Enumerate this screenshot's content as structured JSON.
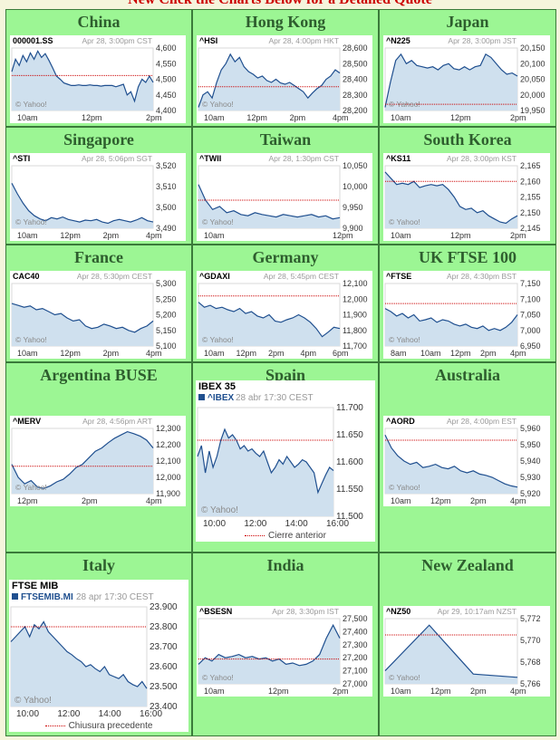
{
  "page": {
    "banner": "New Click the Charts Below for a Detailed Quote"
  },
  "charts": [
    {
      "region": "China",
      "symbol": "000001.SS",
      "stamp": "Apr 28, 3:00pm CST",
      "yticks": [
        "4,600",
        "4,550",
        "4,500",
        "4,450",
        "4,400"
      ],
      "xticks": [
        "10am",
        "12pm",
        "2pm"
      ],
      "watermark": "© Yahoo!",
      "prev": 0.44,
      "series": [
        0.38,
        0.18,
        0.28,
        0.12,
        0.22,
        0.08,
        0.18,
        0.05,
        0.15,
        0.09,
        0.2,
        0.32,
        0.45,
        0.5,
        0.56,
        0.58,
        0.6,
        0.6,
        0.59,
        0.6,
        0.6,
        0.59,
        0.6,
        0.6,
        0.61,
        0.6,
        0.6,
        0.6,
        0.62,
        0.6,
        0.58,
        0.75,
        0.7,
        0.85,
        0.62,
        0.5,
        0.55,
        0.45,
        0.55
      ]
    },
    {
      "region": "Hong Kong",
      "symbol": "^HSI",
      "stamp": "Apr 28, 4:00pm HKT",
      "yticks": [
        "28,600",
        "28,500",
        "28,400",
        "28,300",
        "28,200"
      ],
      "xticks": [
        "10am",
        "12pm",
        "2pm",
        "4pm"
      ],
      "watermark": "© Yahoo!",
      "prev": 0.62,
      "series": [
        0.95,
        0.75,
        0.7,
        0.8,
        0.55,
        0.35,
        0.25,
        0.1,
        0.22,
        0.15,
        0.3,
        0.38,
        0.42,
        0.48,
        0.45,
        0.52,
        0.55,
        0.5,
        0.56,
        0.58,
        0.55,
        0.6,
        0.65,
        0.7,
        0.8,
        0.72,
        0.65,
        0.6,
        0.5,
        0.45,
        0.35,
        0.4
      ]
    },
    {
      "region": "Japan",
      "symbol": "^N225",
      "stamp": "Apr 28, 3:00pm JST",
      "yticks": [
        "20,150",
        "20,100",
        "20,050",
        "20,000",
        "19,950"
      ],
      "xticks": [
        "10am",
        "12pm",
        "2pm"
      ],
      "watermark": "© Yahoo!",
      "prev": 0.9,
      "series": [
        0.95,
        0.55,
        0.2,
        0.1,
        0.25,
        0.2,
        0.28,
        0.3,
        0.32,
        0.3,
        0.35,
        0.28,
        0.25,
        0.33,
        0.35,
        0.3,
        0.35,
        0.3,
        0.28,
        0.1,
        0.15,
        0.25,
        0.35,
        0.42,
        0.4,
        0.45
      ]
    },
    {
      "region": "Singapore",
      "symbol": "^STI",
      "stamp": "Apr 28, 5:06pm SGT",
      "yticks": [
        "3,520",
        "3,510",
        "3,500",
        "3,490"
      ],
      "xticks": [
        "10am",
        "12pm",
        "2pm",
        "4pm"
      ],
      "watermark": "© Yahoo!",
      "prev": null,
      "series": [
        0.28,
        0.45,
        0.6,
        0.72,
        0.8,
        0.85,
        0.88,
        0.83,
        0.85,
        0.82,
        0.86,
        0.88,
        0.9,
        0.87,
        0.88,
        0.86,
        0.9,
        0.92,
        0.88,
        0.86,
        0.88,
        0.9,
        0.87,
        0.83,
        0.88,
        0.9
      ]
    },
    {
      "region": "Taiwan",
      "symbol": "^TWII",
      "stamp": "Apr 28, 1:30pm CST",
      "yticks": [
        "10,050",
        "10,000",
        "9,950",
        "9,900"
      ],
      "xticks": [
        "10am",
        "12pm"
      ],
      "watermark": "© Yahoo!",
      "prev": 0.55,
      "series": [
        0.3,
        0.55,
        0.7,
        0.65,
        0.75,
        0.72,
        0.78,
        0.8,
        0.75,
        0.78,
        0.8,
        0.82,
        0.78,
        0.8,
        0.82,
        0.8,
        0.78,
        0.82,
        0.8,
        0.85,
        0.83
      ]
    },
    {
      "region": "South Korea",
      "symbol": "^KS11",
      "stamp": "Apr 28, 3:00pm KST",
      "yticks": [
        "2,165",
        "2,160",
        "2,155",
        "2,150",
        "2,145"
      ],
      "xticks": [
        "10am",
        "12pm",
        "2pm"
      ],
      "watermark": "© Yahoo!",
      "prev": 0.25,
      "series": [
        0.1,
        0.2,
        0.3,
        0.28,
        0.3,
        0.25,
        0.35,
        0.32,
        0.3,
        0.32,
        0.3,
        0.38,
        0.5,
        0.65,
        0.7,
        0.68,
        0.75,
        0.72,
        0.8,
        0.85,
        0.9,
        0.92,
        0.85,
        0.8
      ]
    },
    {
      "region": "France",
      "symbol": "CAC40",
      "stamp": "Apr 28, 5:30pm CEST",
      "yticks": [
        "5,300",
        "5,250",
        "5,200",
        "5,150",
        "5,100"
      ],
      "xticks": [
        "10am",
        "12pm",
        "2pm",
        "4pm"
      ],
      "watermark": "© Yahoo!",
      "prev": null,
      "series": [
        0.32,
        0.35,
        0.38,
        0.36,
        0.42,
        0.4,
        0.45,
        0.5,
        0.48,
        0.55,
        0.6,
        0.58,
        0.68,
        0.72,
        0.7,
        0.65,
        0.68,
        0.72,
        0.7,
        0.75,
        0.78,
        0.72,
        0.68,
        0.6
      ]
    },
    {
      "region": "Germany",
      "symbol": "^GDAXI",
      "stamp": "Apr 28, 5:45pm CEST",
      "yticks": [
        "12,100",
        "12,000",
        "11,900",
        "11,800",
        "11,700"
      ],
      "xticks": [
        "10am",
        "12pm",
        "2pm",
        "4pm",
        "6pm"
      ],
      "watermark": "© Yahoo!",
      "prev": 0.2,
      "series": [
        0.3,
        0.38,
        0.35,
        0.4,
        0.38,
        0.42,
        0.45,
        0.4,
        0.48,
        0.45,
        0.52,
        0.55,
        0.5,
        0.6,
        0.62,
        0.58,
        0.55,
        0.5,
        0.55,
        0.62,
        0.72,
        0.85,
        0.78,
        0.7,
        0.72
      ]
    },
    {
      "region": "UK FTSE 100",
      "symbol": "^FTSE",
      "stamp": "Apr 28, 4:30pm BST",
      "yticks": [
        "7,150",
        "7,100",
        "7,050",
        "7,000",
        "6,950"
      ],
      "xticks": [
        "8am",
        "10am",
        "12pm",
        "2pm",
        "4pm"
      ],
      "watermark": "© Yahoo!",
      "prev": 0.32,
      "series": [
        0.4,
        0.45,
        0.52,
        0.48,
        0.55,
        0.5,
        0.6,
        0.58,
        0.55,
        0.62,
        0.58,
        0.6,
        0.65,
        0.68,
        0.65,
        0.7,
        0.72,
        0.68,
        0.75,
        0.72,
        0.75,
        0.7,
        0.62,
        0.5
      ]
    },
    {
      "region": "Argentina BUSE",
      "symbol": "^MERV",
      "stamp": "Apr 28, 4:56pm ART",
      "yticks": [
        "12,300",
        "12,200",
        "12,100",
        "12,000",
        "11,900"
      ],
      "xticks": [
        "12pm",
        "2pm",
        "4pm"
      ],
      "watermark": "© Yahoo!",
      "prev": 0.58,
      "series": [
        0.55,
        0.75,
        0.85,
        0.8,
        0.9,
        0.92,
        0.88,
        0.82,
        0.78,
        0.7,
        0.6,
        0.55,
        0.45,
        0.35,
        0.3,
        0.22,
        0.15,
        0.1,
        0.05,
        0.08,
        0.12,
        0.18,
        0.3
      ]
    },
    {
      "region": "Spain",
      "big": true,
      "title": "IBEX 35",
      "symbol": "^IBEX",
      "stamp": "28 abr 17:30 CEST",
      "yticks": [
        "11.700",
        "11.650",
        "11.600",
        "11.550",
        "11.500"
      ],
      "xticks": [
        "10:00",
        "12:00",
        "14:00",
        "16:00"
      ],
      "watermark": "© Yahoo!",
      "legend": "Cierre anterior",
      "prev": 0.3,
      "series": [
        0.45,
        0.35,
        0.6,
        0.4,
        0.55,
        0.45,
        0.3,
        0.2,
        0.28,
        0.25,
        0.3,
        0.38,
        0.35,
        0.4,
        0.38,
        0.42,
        0.45,
        0.4,
        0.5,
        0.6,
        0.55,
        0.48,
        0.52,
        0.45,
        0.5,
        0.55,
        0.52,
        0.48,
        0.5,
        0.55,
        0.6,
        0.78,
        0.7,
        0.62,
        0.55,
        0.58
      ]
    },
    {
      "region": "Australia",
      "symbol": "^AORD",
      "stamp": "Apr 28, 4:00pm EST",
      "yticks": [
        "5,960",
        "5,950",
        "5,940",
        "5,930",
        "5,920"
      ],
      "xticks": [
        "10am",
        "12pm",
        "2pm",
        "4pm"
      ],
      "watermark": "© Yahoo!",
      "prev": 0.18,
      "series": [
        0.1,
        0.3,
        0.42,
        0.5,
        0.55,
        0.52,
        0.6,
        0.58,
        0.55,
        0.6,
        0.62,
        0.58,
        0.65,
        0.68,
        0.65,
        0.7,
        0.72,
        0.75,
        0.8,
        0.85,
        0.88,
        0.9
      ]
    },
    {
      "region": "Italy",
      "big": true,
      "title": "FTSE MIB",
      "symbol": "FTSEMIB.MI",
      "stamp": "28 apr 17:30 CEST",
      "yticks": [
        "23.900",
        "23.800",
        "23.700",
        "23.600",
        "23.500",
        "23.400"
      ],
      "xticks": [
        "10:00",
        "12:00",
        "14:00",
        "16:00"
      ],
      "watermark": "© Yahoo!",
      "legend": "Chiusura precedente",
      "prev": 0.2,
      "series": [
        0.35,
        0.3,
        0.25,
        0.2,
        0.3,
        0.18,
        0.22,
        0.15,
        0.25,
        0.3,
        0.35,
        0.4,
        0.45,
        0.48,
        0.52,
        0.55,
        0.6,
        0.58,
        0.62,
        0.65,
        0.6,
        0.68,
        0.7,
        0.72,
        0.68,
        0.75,
        0.78,
        0.8,
        0.75,
        0.82
      ]
    },
    {
      "region": "India",
      "symbol": "^BSESN",
      "stamp": "Apr 28, 3:30pm IST",
      "yticks": [
        "27,500",
        "27,400",
        "27,300",
        "27,200",
        "27,100",
        "27,000"
      ],
      "xticks": [
        "10am",
        "12pm",
        "2pm"
      ],
      "watermark": "© Yahoo!",
      "prev": 0.62,
      "series": [
        0.7,
        0.6,
        0.65,
        0.55,
        0.6,
        0.58,
        0.55,
        0.6,
        0.58,
        0.62,
        0.6,
        0.65,
        0.62,
        0.7,
        0.68,
        0.72,
        0.7,
        0.65,
        0.55,
        0.3,
        0.1,
        0.3
      ]
    },
    {
      "region": "New Zealand",
      "symbol": "^NZ50",
      "stamp": "Apr 29, 10:17am NZST",
      "yticks": [
        "5,772",
        "5,770",
        "5,768",
        "5,766"
      ],
      "xticks": [
        "10am",
        "12pm",
        "2pm",
        "4pm"
      ],
      "watermark": "© Yahoo!",
      "prev": 0.25,
      "series": [
        0.8,
        0.1,
        0.85,
        0.9
      ]
    }
  ]
}
